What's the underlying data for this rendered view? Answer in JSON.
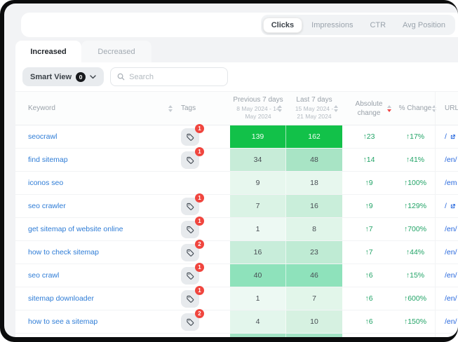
{
  "metric_tabs": [
    {
      "label": "Clicks",
      "active": true
    },
    {
      "label": "Impressions",
      "active": false
    },
    {
      "label": "CTR",
      "active": false
    },
    {
      "label": "Avg Position",
      "active": false
    }
  ],
  "view_tabs": {
    "increased": "Increased",
    "decreased": "Decreased"
  },
  "toolbar": {
    "smart_view_label": "Smart View",
    "smart_view_count": "0",
    "search_placeholder": "Search"
  },
  "table": {
    "headers": {
      "keyword": "Keyword",
      "tags": "Tags",
      "previous_title": "Previous 7 days",
      "previous_range": "8 May 2024 - 14 May 2024",
      "last_title": "Last 7 days",
      "last_range": "15 May 2024 - 21 May 2024",
      "absolute": "Absolute change",
      "pct": "% Change",
      "url": "URL"
    },
    "rows": [
      {
        "keyword": "seocrawl",
        "tag_count": "1",
        "prev": "139",
        "last": "162",
        "abs_change": "↑23",
        "pct_change": "↑17%",
        "url": "/",
        "url_external": true,
        "prev_bg": "#12c149",
        "last_bg": "#12c149",
        "light": true
      },
      {
        "keyword": "find sitemap",
        "tag_count": "1",
        "prev": "34",
        "last": "48",
        "abs_change": "↑14",
        "pct_change": "↑41%",
        "url": "/en/",
        "url_external": false,
        "prev_bg": "#c7ecd8",
        "last_bg": "#a8e4c5",
        "light": false
      },
      {
        "keyword": "iconos seo",
        "tag_count": null,
        "prev": "9",
        "last": "18",
        "abs_change": "↑9",
        "pct_change": "↑100%",
        "url": "/em",
        "url_external": false,
        "prev_bg": "#e7f7ee",
        "last_bg": "#e7f7ee",
        "light": false
      },
      {
        "keyword": "seo crawler",
        "tag_count": "1",
        "prev": "7",
        "last": "16",
        "abs_change": "↑9",
        "pct_change": "↑129%",
        "url": "/",
        "url_external": true,
        "prev_bg": "#daf3e5",
        "last_bg": "#c9eeda",
        "light": false
      },
      {
        "keyword": "get sitemap of website online",
        "tag_count": "1",
        "prev": "1",
        "last": "8",
        "abs_change": "↑7",
        "pct_change": "↑700%",
        "url": "/en/",
        "url_external": false,
        "prev_bg": "#edf9f3",
        "last_bg": "#e0f5e9",
        "light": false
      },
      {
        "keyword": "how to check sitemap",
        "tag_count": "2",
        "prev": "16",
        "last": "23",
        "abs_change": "↑7",
        "pct_change": "↑44%",
        "url": "/en/",
        "url_external": false,
        "prev_bg": "#c8edda",
        "last_bg": "#bfebd4",
        "light": false
      },
      {
        "keyword": "seo crawl",
        "tag_count": "1",
        "prev": "40",
        "last": "46",
        "abs_change": "↑6",
        "pct_change": "↑15%",
        "url": "/en/",
        "url_external": false,
        "prev_bg": "#8ee2bb",
        "last_bg": "#8ee2bb",
        "light": false
      },
      {
        "keyword": "sitemap downloader",
        "tag_count": "1",
        "prev": "1",
        "last": "7",
        "abs_change": "↑6",
        "pct_change": "↑600%",
        "url": "/en/",
        "url_external": false,
        "prev_bg": "#edf9f3",
        "last_bg": "#e2f6ea",
        "light": false
      },
      {
        "keyword": "how to see a sitemap",
        "tag_count": "2",
        "prev": "4",
        "last": "10",
        "abs_change": "↑6",
        "pct_change": "↑150%",
        "url": "/en/",
        "url_external": false,
        "prev_bg": "#e3f6ec",
        "last_bg": "#d6f1e1",
        "light": false
      }
    ],
    "partial_row": {
      "prev_bg": "#a3e5c5",
      "last_bg": "#a3e5c5"
    }
  },
  "colors": {
    "accent_green": "#13c14a",
    "positive_text": "#21a366",
    "badge_red": "#f0453e",
    "link_blue": "#2e7cd6"
  }
}
